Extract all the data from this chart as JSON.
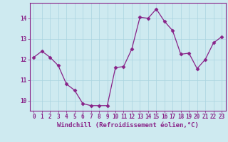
{
  "x": [
    0,
    1,
    2,
    3,
    4,
    5,
    6,
    7,
    8,
    9,
    10,
    11,
    12,
    13,
    14,
    15,
    16,
    17,
    18,
    19,
    20,
    21,
    22,
    23
  ],
  "y": [
    12.1,
    12.4,
    12.1,
    11.7,
    10.8,
    10.5,
    9.85,
    9.75,
    9.75,
    9.75,
    11.6,
    11.65,
    12.5,
    14.05,
    14.0,
    14.45,
    13.85,
    13.4,
    12.25,
    12.3,
    11.55,
    12.0,
    12.8,
    13.1
  ],
  "line_color": "#882288",
  "marker": "D",
  "marker_size": 2.5,
  "bg_color": "#ceeaf0",
  "grid_color": "#aad4e0",
  "xlabel": "Windchill (Refroidissement éolien,°C)",
  "ylim": [
    9.5,
    14.75
  ],
  "xlim": [
    -0.5,
    23.5
  ],
  "yticks": [
    10,
    11,
    12,
    13,
    14
  ],
  "xticks": [
    0,
    1,
    2,
    3,
    4,
    5,
    6,
    7,
    8,
    9,
    10,
    11,
    12,
    13,
    14,
    15,
    16,
    17,
    18,
    19,
    20,
    21,
    22,
    23
  ],
  "tick_fontsize": 5.5,
  "label_fontsize": 6.5
}
